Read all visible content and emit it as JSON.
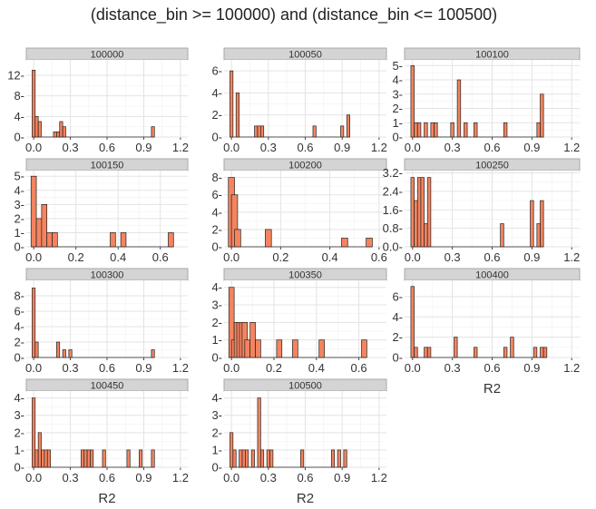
{
  "colors": {
    "bar_fill": "#f4845f",
    "bar_edge": "#222222",
    "strip_fill": "#d4d4d4"
  },
  "chart_data": {
    "type": "bar",
    "title": "(distance_bin >= 100000) and (distance_bin <= 100500)",
    "xlabel": "R2",
    "ylabel": "",
    "bin_width": 0.025,
    "facets": [
      {
        "label": "100000",
        "xlim": [
          -0.06,
          1.26
        ],
        "xticks": [
          0.0,
          0.3,
          0.6,
          0.9,
          1.2
        ],
        "xtick_labels": [
          "0.0",
          "0.3",
          "0.6",
          "0.9",
          "1.2"
        ],
        "ylim": [
          0,
          15
        ],
        "yticks": [
          0,
          4,
          8,
          12
        ],
        "ytick_labels": [
          "0-",
          "4-",
          "8-",
          "12-"
        ],
        "bins": [
          [
            0.0,
            13
          ],
          [
            0.025,
            4
          ],
          [
            0.05,
            3
          ],
          [
            0.175,
            1
          ],
          [
            0.2,
            1
          ],
          [
            0.225,
            3
          ],
          [
            0.25,
            2
          ],
          [
            0.975,
            2
          ]
        ]
      },
      {
        "label": "100050",
        "xlim": [
          -0.06,
          1.26
        ],
        "xticks": [
          0.0,
          0.3,
          0.6,
          0.9,
          1.2
        ],
        "xtick_labels": [
          "0.0",
          "0.3",
          "0.6",
          "0.9",
          "1.2"
        ],
        "ylim": [
          0,
          7
        ],
        "yticks": [
          0,
          2,
          4,
          6
        ],
        "ytick_labels": [
          "0-",
          "2-",
          "4-",
          "6-"
        ],
        "bins": [
          [
            0.0,
            6
          ],
          [
            0.05,
            4
          ],
          [
            0.2,
            1
          ],
          [
            0.225,
            1
          ],
          [
            0.25,
            1
          ],
          [
            0.675,
            1
          ],
          [
            0.9,
            1
          ],
          [
            0.95,
            2
          ]
        ]
      },
      {
        "label": "100100",
        "xlim": [
          -0.06,
          1.26
        ],
        "xticks": [
          0.0,
          0.3,
          0.6,
          0.9,
          1.2
        ],
        "xtick_labels": [
          "0.0",
          "0.3",
          "0.6",
          "0.9",
          "1.2"
        ],
        "ylim": [
          0,
          5.4
        ],
        "yticks": [
          0,
          1,
          2,
          3,
          4,
          5
        ],
        "ytick_labels": [
          "0-",
          "1-",
          "2-",
          "3-",
          "4-",
          "5-"
        ],
        "bins": [
          [
            0.0,
            5
          ],
          [
            0.025,
            1
          ],
          [
            0.05,
            1
          ],
          [
            0.1,
            1
          ],
          [
            0.15,
            1
          ],
          [
            0.175,
            1
          ],
          [
            0.3,
            1
          ],
          [
            0.35,
            4
          ],
          [
            0.4,
            1
          ],
          [
            0.475,
            1
          ],
          [
            0.7,
            1
          ],
          [
            0.95,
            1
          ],
          [
            0.975,
            3
          ]
        ]
      },
      {
        "label": "100150",
        "xlim": [
          -0.035,
          0.73
        ],
        "xticks": [
          0.0,
          0.2,
          0.4,
          0.6
        ],
        "xtick_labels": [
          "0.0",
          "0.2",
          "0.4",
          "0.6"
        ],
        "ylim": [
          0,
          5.4
        ],
        "yticks": [
          0,
          1,
          2,
          3,
          4,
          5
        ],
        "ytick_labels": [
          "0-",
          "1-",
          "2-",
          "3-",
          "4-",
          "5-"
        ],
        "bins": [
          [
            0.0,
            5
          ],
          [
            0.025,
            2
          ],
          [
            0.05,
            3
          ],
          [
            0.075,
            1
          ],
          [
            0.1,
            1
          ],
          [
            0.375,
            1
          ],
          [
            0.425,
            1
          ],
          [
            0.65,
            1
          ]
        ]
      },
      {
        "label": "100200",
        "xlim": [
          -0.03,
          0.63
        ],
        "xticks": [
          0.0,
          0.2,
          0.4,
          0.6
        ],
        "xtick_labels": [
          "0.0",
          "0.2",
          "0.4",
          "0.6"
        ],
        "ylim": [
          0,
          8.8
        ],
        "yticks": [
          0,
          2,
          4,
          6,
          8
        ],
        "ytick_labels": [
          "0-",
          "2-",
          "4-",
          "6-",
          "8-"
        ],
        "bins": [
          [
            0.0,
            8
          ],
          [
            0.0125,
            6
          ],
          [
            0.025,
            2
          ],
          [
            0.15,
            2
          ],
          [
            0.46,
            1
          ],
          [
            0.56,
            1
          ]
        ]
      },
      {
        "label": "100250",
        "xlim": [
          -0.06,
          1.26
        ],
        "xticks": [
          0.0,
          0.3,
          0.6,
          0.9,
          1.2
        ],
        "xtick_labels": [
          "0.0",
          "0.3",
          "0.6",
          "0.9",
          "1.2"
        ],
        "ylim": [
          0,
          3.3
        ],
        "yticks": [
          0.0,
          0.8,
          1.6,
          2.4,
          3.2
        ],
        "ytick_labels": [
          "0.0-",
          "0.8-",
          "1.6-",
          "2.4-",
          "3.2-"
        ],
        "bins": [
          [
            0.0,
            3
          ],
          [
            0.025,
            2
          ],
          [
            0.05,
            3
          ],
          [
            0.075,
            3
          ],
          [
            0.1,
            1
          ],
          [
            0.125,
            3
          ],
          [
            0.675,
            1
          ],
          [
            0.9,
            2
          ],
          [
            0.95,
            1
          ],
          [
            0.975,
            2
          ]
        ]
      },
      {
        "label": "100300",
        "xlim": [
          -0.06,
          1.26
        ],
        "xticks": [
          0.0,
          0.3,
          0.6,
          0.9,
          1.2
        ],
        "xtick_labels": [
          "0.0",
          "0.3",
          "0.6",
          "0.9",
          "1.2"
        ],
        "ylim": [
          0,
          10
        ],
        "yticks": [
          0,
          2,
          4,
          6,
          8
        ],
        "ytick_labels": [
          "0-",
          "2-",
          "4-",
          "6-",
          "8-"
        ],
        "bins": [
          [
            0.0,
            9
          ],
          [
            0.025,
            2
          ],
          [
            0.2,
            2
          ],
          [
            0.25,
            1
          ],
          [
            0.3,
            1
          ],
          [
            0.975,
            1
          ]
        ]
      },
      {
        "label": "100350",
        "xlim": [
          -0.035,
          0.73
        ],
        "xticks": [
          0.0,
          0.2,
          0.4,
          0.6
        ],
        "xtick_labels": [
          "0.0",
          "0.2",
          "0.4",
          "0.6"
        ],
        "ylim": [
          0,
          4.4
        ],
        "yticks": [
          0,
          1,
          2,
          3,
          4
        ],
        "ytick_labels": [
          "0-",
          "1-",
          "2-",
          "3-",
          "4-"
        ],
        "bins": [
          [
            0.0,
            4
          ],
          [
            0.0125,
            1
          ],
          [
            0.025,
            2
          ],
          [
            0.0375,
            2
          ],
          [
            0.05,
            2
          ],
          [
            0.0625,
            2
          ],
          [
            0.075,
            1
          ],
          [
            0.1,
            2
          ],
          [
            0.125,
            1
          ],
          [
            0.225,
            1
          ],
          [
            0.3,
            1
          ],
          [
            0.425,
            1
          ],
          [
            0.625,
            1
          ]
        ]
      },
      {
        "label": "100400",
        "xlim": [
          -0.06,
          1.26
        ],
        "xticks": [
          0.0,
          0.3,
          0.6,
          0.9,
          1.2
        ],
        "xtick_labels": [
          "0.0",
          "0.3",
          "0.6",
          "0.9",
          "1.2"
        ],
        "ylim": [
          0,
          7.6
        ],
        "yticks": [
          0,
          2,
          4,
          6
        ],
        "ytick_labels": [
          "0-",
          "2-",
          "4-",
          "6-"
        ],
        "bins": [
          [
            0.0,
            7
          ],
          [
            0.025,
            1
          ],
          [
            0.1,
            1
          ],
          [
            0.125,
            1
          ],
          [
            0.325,
            2
          ],
          [
            0.475,
            1
          ],
          [
            0.7,
            1
          ],
          [
            0.75,
            2
          ],
          [
            0.925,
            1
          ],
          [
            0.975,
            1
          ],
          [
            1.0,
            1
          ]
        ]
      },
      {
        "label": "100450",
        "xlim": [
          -0.06,
          1.26
        ],
        "xticks": [
          0.0,
          0.3,
          0.6,
          0.9,
          1.2
        ],
        "xtick_labels": [
          "0.0",
          "0.3",
          "0.6",
          "0.9",
          "1.2"
        ],
        "ylim": [
          0,
          4.4
        ],
        "yticks": [
          0,
          1,
          2,
          3,
          4
        ],
        "ytick_labels": [
          "0-",
          "1-",
          "2-",
          "3-",
          "4-"
        ],
        "bins": [
          [
            0.0,
            4
          ],
          [
            0.025,
            1
          ],
          [
            0.05,
            2
          ],
          [
            0.075,
            1
          ],
          [
            0.1,
            1
          ],
          [
            0.125,
            1
          ],
          [
            0.4,
            1
          ],
          [
            0.425,
            1
          ],
          [
            0.45,
            1
          ],
          [
            0.475,
            1
          ],
          [
            0.575,
            1
          ],
          [
            0.775,
            1
          ],
          [
            0.875,
            1
          ],
          [
            0.975,
            1
          ]
        ]
      },
      {
        "label": "100500",
        "xlim": [
          -0.06,
          1.26
        ],
        "xticks": [
          0.0,
          0.3,
          0.6,
          0.9,
          1.2
        ],
        "xtick_labels": [
          "0.0",
          "0.3",
          "0.6",
          "0.9",
          "1.2"
        ],
        "ylim": [
          0,
          4.4
        ],
        "yticks": [
          0,
          1,
          2,
          3,
          4
        ],
        "ytick_labels": [
          "0-",
          "1-",
          "2-",
          "3-",
          "4-"
        ],
        "bins": [
          [
            0.0,
            2
          ],
          [
            0.025,
            1
          ],
          [
            0.075,
            1
          ],
          [
            0.1,
            1
          ],
          [
            0.125,
            1
          ],
          [
            0.175,
            1
          ],
          [
            0.225,
            4
          ],
          [
            0.25,
            1
          ],
          [
            0.3,
            1
          ],
          [
            0.325,
            1
          ],
          [
            0.575,
            1
          ],
          [
            0.825,
            1
          ],
          [
            0.875,
            1
          ],
          [
            0.925,
            1
          ]
        ]
      }
    ]
  }
}
